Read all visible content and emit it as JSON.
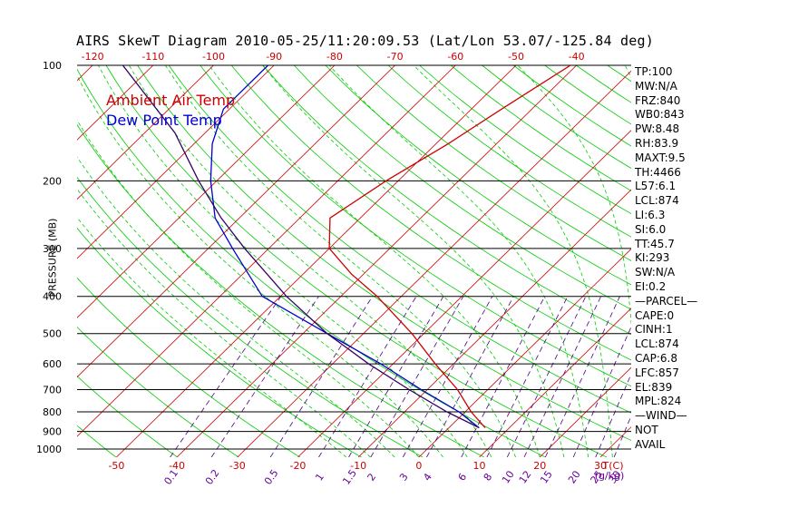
{
  "title": "AIRS SkewT Diagram 2010-05-25/11:20:09.53 (Lat/Lon 53.07/-125.84 deg)",
  "colors": {
    "temperature": "#cc0000",
    "dewpoint": "#0000cc",
    "parcel": "#330066",
    "isotherm": "#cc0000",
    "dry_adiabat": "#00cc00",
    "moist_adiabat": "#00cc00",
    "mixing_ratio": "#4b0082",
    "isobar": "#000000",
    "axis_text_red": "#cc0000",
    "axis_text_purple": "#660099"
  },
  "legend": {
    "temperature": "Ambient Air Temp",
    "dewpoint": "Dew Point Temp"
  },
  "stats": [
    "TP:100",
    "MW:N/A",
    "FRZ:840",
    "WB0:843",
    "PW:8.48",
    "RH:83.9",
    "MAXT:9.5",
    "TH:4466",
    "L57:6.1",
    "LCL:874",
    "LI:6.3",
    "SI:6.0",
    "TT:45.7",
    "KI:293",
    "SW:N/A",
    "EI:0.2",
    "—PARCEL—",
    "CAPE:0",
    "CINH:1",
    "LCL:874",
    "CAP:6.8",
    "LFC:857",
    "EL:839",
    "MPL:824",
    "—WIND—",
    "NOT",
    "AVAIL"
  ],
  "chart_data": {
    "type": "line",
    "title": "AIRS SkewT Diagram 2010-05-25/11:20:09.53 (Lat/Lon 53.07/-125.84 deg)",
    "ylabel": "PRESSURE (MB)",
    "xlabel_bottom": "T(C)",
    "mixing_ratio_unit": "(g/kg)",
    "pressure_range_mb": [
      1050,
      100
    ],
    "log_pressure": true,
    "grid": true,
    "legend_position": "top-left",
    "isobars_mb": [
      100,
      200,
      300,
      400,
      500,
      600,
      700,
      800,
      900,
      1000
    ],
    "y_tick_labels": [
      "100",
      "200",
      "300",
      "400",
      "500",
      "600",
      "700",
      "800",
      "900",
      "1000"
    ],
    "top_temperature_ticks": [
      "-120",
      "-110",
      "-100",
      "-90",
      "-80",
      "-70",
      "-60",
      "-50",
      "-40"
    ],
    "bottom_temperature_ticks": [
      "-50",
      "-40",
      "-30",
      "-20",
      "-10",
      "0",
      "10",
      "20",
      "30"
    ],
    "mixing_ratio_ticks": [
      "0.1",
      "0.2",
      "0.5",
      "1",
      "1.5",
      "2",
      "3",
      "4",
      "6",
      "8",
      "10",
      "12",
      "15",
      "20",
      "25",
      "30",
      "40"
    ],
    "series": [
      {
        "name": "Ambient Air Temp",
        "points": [
          {
            "p": 100,
            "t": -41
          },
          {
            "p": 130,
            "t": -45
          },
          {
            "p": 160,
            "t": -48
          },
          {
            "p": 200,
            "t": -52
          },
          {
            "p": 250,
            "t": -55
          },
          {
            "p": 300,
            "t": -50
          },
          {
            "p": 350,
            "t": -42
          },
          {
            "p": 400,
            "t": -34
          },
          {
            "p": 500,
            "t": -22
          },
          {
            "p": 600,
            "t": -13
          },
          {
            "p": 700,
            "t": -5
          },
          {
            "p": 800,
            "t": 1
          },
          {
            "p": 880,
            "t": 6
          }
        ]
      },
      {
        "name": "Dew Point Temp",
        "points": [
          {
            "p": 100,
            "t": -91
          },
          {
            "p": 130,
            "t": -91
          },
          {
            "p": 160,
            "t": -87
          },
          {
            "p": 200,
            "t": -81
          },
          {
            "p": 250,
            "t": -74
          },
          {
            "p": 300,
            "t": -66
          },
          {
            "p": 400,
            "t": -53
          },
          {
            "p": 500,
            "t": -36
          },
          {
            "p": 600,
            "t": -22
          },
          {
            "p": 700,
            "t": -11
          },
          {
            "p": 800,
            "t": -1
          },
          {
            "p": 880,
            "t": 5
          }
        ]
      },
      {
        "points": [
          {
            "p": 100,
            "t": -115
          },
          {
            "p": 150,
            "t": -95
          },
          {
            "p": 200,
            "t": -83
          },
          {
            "p": 250,
            "t": -73
          },
          {
            "p": 300,
            "t": -64
          },
          {
            "p": 400,
            "t": -49
          },
          {
            "p": 500,
            "t": -36
          },
          {
            "p": 600,
            "t": -24
          },
          {
            "p": 700,
            "t": -13
          },
          {
            "p": 800,
            "t": -3
          },
          {
            "p": 880,
            "t": 5
          }
        ]
      }
    ]
  }
}
